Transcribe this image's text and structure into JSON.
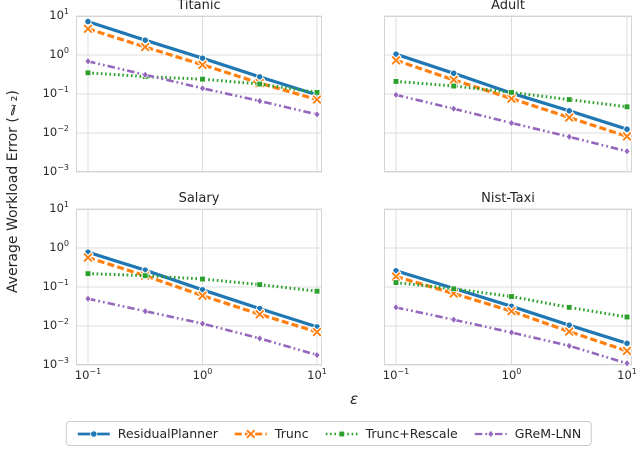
{
  "figure": {
    "ylabel": "Average Workload Error (ℓ₂)",
    "xlabel": "ε"
  },
  "axes": {
    "x_ticks": [
      {
        "base": "10",
        "exp": "−1"
      },
      {
        "base": "10",
        "exp": "0"
      },
      {
        "base": "10",
        "exp": "1"
      }
    ],
    "y_ticks": [
      {
        "base": "10",
        "exp": "1"
      },
      {
        "base": "10",
        "exp": "0"
      },
      {
        "base": "10",
        "exp": "−1"
      },
      {
        "base": "10",
        "exp": "−2"
      },
      {
        "base": "10",
        "exp": "−3"
      }
    ],
    "grid_color": "#dcdcdc"
  },
  "series_defs": [
    {
      "name": "ResidualPlanner",
      "color": "#1f77b4",
      "dash": "solid",
      "marker": "circle"
    },
    {
      "name": "Trunc",
      "color": "#ff7f0e",
      "dash": "dashed",
      "marker": "x"
    },
    {
      "name": "Trunc+Rescale",
      "color": "#2ca02c",
      "dash": "dotted",
      "marker": "square"
    },
    {
      "name": "GReM-LNN",
      "color": "#9467bd",
      "dash": "dashdotdot",
      "marker": "diamond"
    }
  ],
  "chart_data": [
    {
      "type": "line",
      "title": "Titanic",
      "xscale": "log",
      "yscale": "log",
      "x": [
        0.1,
        0.316,
        1,
        3.16,
        10
      ],
      "xlim": [
        0.08,
        11
      ],
      "ylim": [
        0.001,
        10
      ],
      "series": [
        {
          "name": "ResidualPlanner",
          "values": [
            7.2,
            2.4,
            0.83,
            0.275,
            0.095
          ]
        },
        {
          "name": "Trunc",
          "values": [
            4.7,
            1.6,
            0.56,
            0.19,
            0.072
          ]
        },
        {
          "name": "Trunc+Rescale",
          "values": [
            0.35,
            0.28,
            0.24,
            0.18,
            0.11
          ]
        },
        {
          "name": "GReM-LNN",
          "values": [
            0.69,
            0.31,
            0.14,
            0.066,
            0.03
          ]
        }
      ]
    },
    {
      "type": "line",
      "title": "Adult",
      "xscale": "log",
      "yscale": "log",
      "x": [
        0.1,
        0.316,
        1,
        3.16,
        10
      ],
      "xlim": [
        0.08,
        11
      ],
      "ylim": [
        0.001,
        10
      ],
      "series": [
        {
          "name": "ResidualPlanner",
          "values": [
            1.05,
            0.34,
            0.105,
            0.037,
            0.0125
          ]
        },
        {
          "name": "Trunc",
          "values": [
            0.73,
            0.23,
            0.076,
            0.025,
            0.0082
          ]
        },
        {
          "name": "Trunc+Rescale",
          "values": [
            0.21,
            0.16,
            0.11,
            0.072,
            0.047
          ]
        },
        {
          "name": "GReM-LNN",
          "values": [
            0.095,
            0.042,
            0.018,
            0.008,
            0.0034
          ]
        }
      ]
    },
    {
      "type": "line",
      "title": "Salary",
      "xscale": "log",
      "yscale": "log",
      "x": [
        0.1,
        0.316,
        1,
        3.16,
        10
      ],
      "xlim": [
        0.08,
        11
      ],
      "ylim": [
        0.001,
        10
      ],
      "series": [
        {
          "name": "ResidualPlanner",
          "values": [
            0.78,
            0.27,
            0.085,
            0.028,
            0.0095
          ]
        },
        {
          "name": "Trunc",
          "values": [
            0.57,
            0.195,
            0.06,
            0.02,
            0.007
          ]
        },
        {
          "name": "Trunc+Rescale",
          "values": [
            0.22,
            0.195,
            0.16,
            0.115,
            0.078
          ]
        },
        {
          "name": "GReM-LNN",
          "values": [
            0.05,
            0.024,
            0.0115,
            0.0048,
            0.0018
          ]
        }
      ]
    },
    {
      "type": "line",
      "title": "Nist-Taxi",
      "xscale": "log",
      "yscale": "log",
      "x": [
        0.1,
        0.316,
        1,
        3.16,
        10
      ],
      "xlim": [
        0.08,
        11
      ],
      "ylim": [
        0.001,
        10
      ],
      "series": [
        {
          "name": "ResidualPlanner",
          "values": [
            0.26,
            0.092,
            0.032,
            0.0105,
            0.0036
          ]
        },
        {
          "name": "Trunc",
          "values": [
            0.185,
            0.068,
            0.024,
            0.0072,
            0.0023
          ]
        },
        {
          "name": "Trunc+Rescale",
          "values": [
            0.13,
            0.09,
            0.057,
            0.03,
            0.017
          ]
        },
        {
          "name": "GReM-LNN",
          "values": [
            0.03,
            0.0145,
            0.0068,
            0.0031,
            0.0011
          ]
        }
      ]
    }
  ],
  "legend": {
    "entries": [
      "ResidualPlanner",
      "Trunc",
      "Trunc+Rescale",
      "GReM-LNN"
    ]
  }
}
